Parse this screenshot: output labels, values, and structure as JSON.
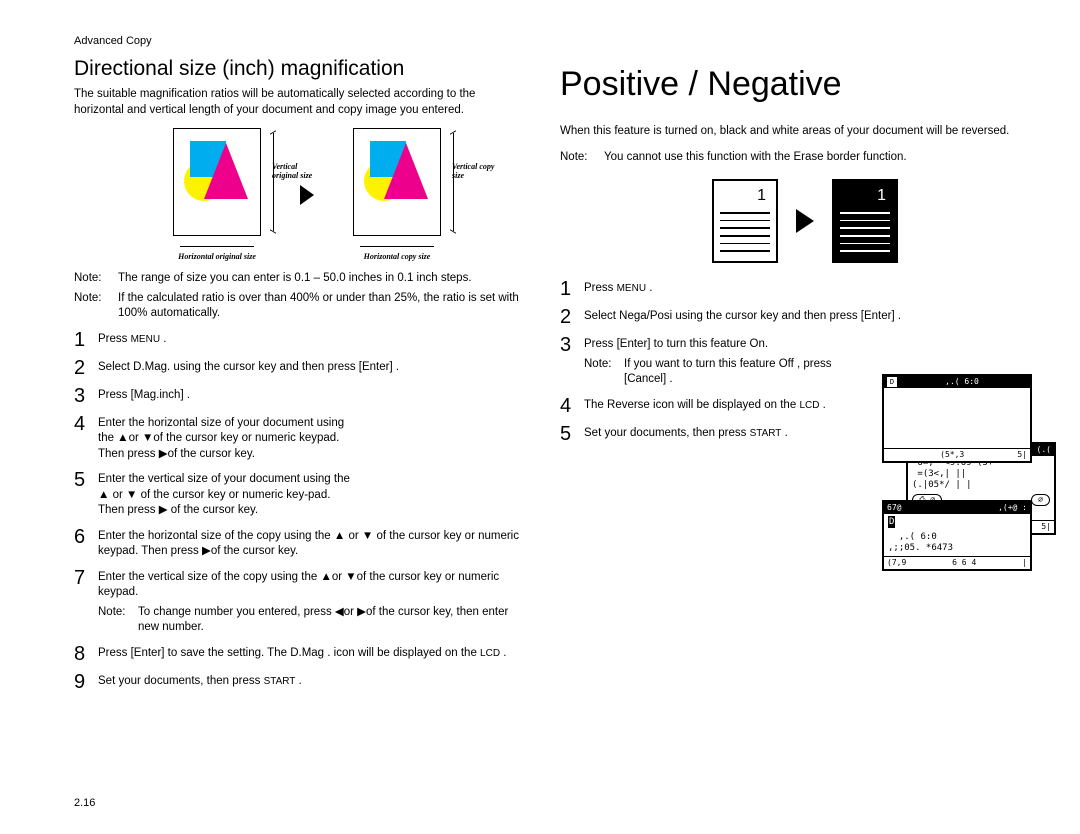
{
  "left": {
    "section": "Advanced Copy",
    "title": "Directional size (inch) magnification",
    "intro": "The suitable magnification ratios will be automatically selected according to the horizontal and vertical length of your document and copy image you entered.",
    "diagram": {
      "left_v_label": "Vertical original size",
      "left_caption": "Horizontal original size",
      "right_v_label": "Vertical copy size",
      "right_caption": "Horizontal copy size",
      "colors": {
        "circle": "#fff200",
        "square": "#00aeef",
        "triangle": "#ec008c"
      }
    },
    "notes": [
      {
        "label": "Note:",
        "text": "The range of size you can enter is 0.1  – 50.0 inches in 0.1 inch steps."
      },
      {
        "label": "Note:",
        "text": "If the calculated ratio is over than 400% or under than 25%, the ratio is set with 100% automatically."
      }
    ],
    "steps": [
      {
        "n": "1",
        "html": "Press <span class='smallcaps'>MENU</span> ."
      },
      {
        "n": "2",
        "html": "Select  D.Mag.      using the cursor key and then press    [Enter]   ."
      },
      {
        "n": "3",
        "html": "Press [Mag.inch]    ."
      },
      {
        "n": "4",
        "html": "Enter the horizontal size of your document using the  ▲or  ▼of the cursor key or numeric keypad. Then press  ▶of the cursor key."
      },
      {
        "n": "5",
        "html": "Enter the vertical size of your document using the ▲ or ▼ of the cursor key or numeric key-pad. Then press ▶ of the cursor key."
      },
      {
        "n": "6",
        "html": "Enter the horizontal size of the copy using the ▲ or ▼ of the cursor key or numeric keypad. Then press    ▶of the cursor key."
      },
      {
        "n": "7",
        "html": "Enter the vertical size of the copy using the      ▲or   ▼of the cursor key or numeric keypad.",
        "note": {
          "label": "Note:",
          "text": "To change number you entered, press   ◀or  ▶of the cursor key, then enter new number."
        }
      },
      {
        "n": "8",
        "html": "Press [Enter]    to save the setting. The  D.Mag . icon will be displayed on the <span class='smallcaps'>LCD</span> ."
      },
      {
        "n": "9",
        "html": "Set your documents, then press  <span class='smallcaps'>START</span> ."
      }
    ],
    "lcd": {
      "header_icon": "D",
      "header_right": "(.(",
      "body": " 6=, *<9:69 (5+\n =(3<,| ||\n(.|05*/ | |",
      "btn1": "⎙ ∅",
      "btn2": "∅",
      "small_row": "⎙ 6*|          ⎙ 79|",
      "footer_left": "(.(",
      "footer_mid": "(5*,3",
      "footer_right": "5|"
    },
    "page_num": "2.16"
  },
  "right": {
    "title": "Positive / Negative",
    "intro": "When this feature is turned on, black and white areas of your document will be reversed.",
    "note": {
      "label": "Note:",
      "text": "You cannot use this function with the Erase border function."
    },
    "pn_num": "1",
    "steps": [
      {
        "n": "1",
        "html": "Press <span class='smallcaps'>MENU</span> ."
      },
      {
        "n": "2",
        "html": "Select  Nega/Posi      using the cursor key and then press    [Enter]   ."
      },
      {
        "n": "3",
        "html": "Press [Enter]    to turn this feature On.",
        "note": {
          "label": "Note:",
          "text": "If you want to turn this feature      Off , press [Cancel]   ."
        }
      },
      {
        "n": "4",
        "html": "The  Reverse icon will be displayed on the   <span class='smallcaps'>LCD</span> ."
      },
      {
        "n": "5",
        "html": "Set your documents, then press  <span class='smallcaps'>START</span> ."
      }
    ],
    "lcd2": {
      "header_icon": "D",
      "header_text": ",.( 6:0",
      "body": " ",
      "footer_left": "(5*,3",
      "footer_right": "5|"
    },
    "lcd3": {
      "header_left": "67@",
      "header_right": ",(+@        :",
      "icon": "D",
      "body": "  ,.( 6:0\n,;;05. *6473",
      "footer_left": "(7,9",
      "footer_mid": "6 6 4",
      "footer_right": "|"
    }
  }
}
